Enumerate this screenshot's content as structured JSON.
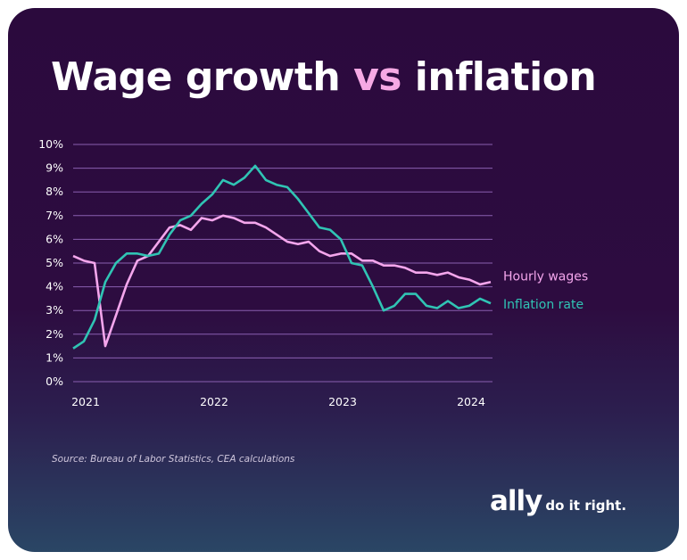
{
  "title": {
    "part1": "Wage growth ",
    "highlight": "vs",
    "part2": " inflation"
  },
  "source": "Source: Bureau of Labor Statistics, CEA calculations",
  "logo": {
    "brand": "ally",
    "tagline": "do it right."
  },
  "colors": {
    "wages": "#f4a6ec",
    "inflation": "#30c4b4",
    "grid": "#8a5fb0",
    "highlight": "#f6a9e4"
  },
  "chart_data": {
    "type": "line",
    "title": "Wage growth vs inflation",
    "x_start": "2021-01",
    "x_frequency": "monthly",
    "x_ticks": [
      "2021",
      "2022",
      "2023",
      "2024"
    ],
    "y_ticks": [
      "0%",
      "1%",
      "2%",
      "3%",
      "4%",
      "5%",
      "6%",
      "7%",
      "8%",
      "9%",
      "10%"
    ],
    "ylim": [
      0,
      10
    ],
    "grid": true,
    "legend": "right, inline labels at line ends",
    "series": [
      {
        "name": "Hourly wages",
        "color": "#f4a6ec",
        "values": [
          5.3,
          5.1,
          5.0,
          1.5,
          2.8,
          4.1,
          5.1,
          5.3,
          5.9,
          6.5,
          6.6,
          6.4,
          6.9,
          6.8,
          7.0,
          6.9,
          6.7,
          6.7,
          6.5,
          6.2,
          5.9,
          5.8,
          5.9,
          5.5,
          5.3,
          5.4,
          5.4,
          5.1,
          5.1,
          4.9,
          4.9,
          4.8,
          4.6,
          4.6,
          4.5,
          4.6,
          4.4,
          4.3,
          4.1,
          4.2
        ]
      },
      {
        "name": "Inflation rate",
        "color": "#30c4b4",
        "values": [
          1.4,
          1.7,
          2.6,
          4.2,
          5.0,
          5.4,
          5.4,
          5.3,
          5.4,
          6.2,
          6.8,
          7.0,
          7.5,
          7.9,
          8.5,
          8.3,
          8.6,
          9.1,
          8.5,
          8.3,
          8.2,
          7.7,
          7.1,
          6.5,
          6.4,
          6.0,
          5.0,
          4.9,
          4.0,
          3.0,
          3.2,
          3.7,
          3.7,
          3.2,
          3.1,
          3.4,
          3.1,
          3.2,
          3.5,
          3.3
        ]
      }
    ]
  }
}
